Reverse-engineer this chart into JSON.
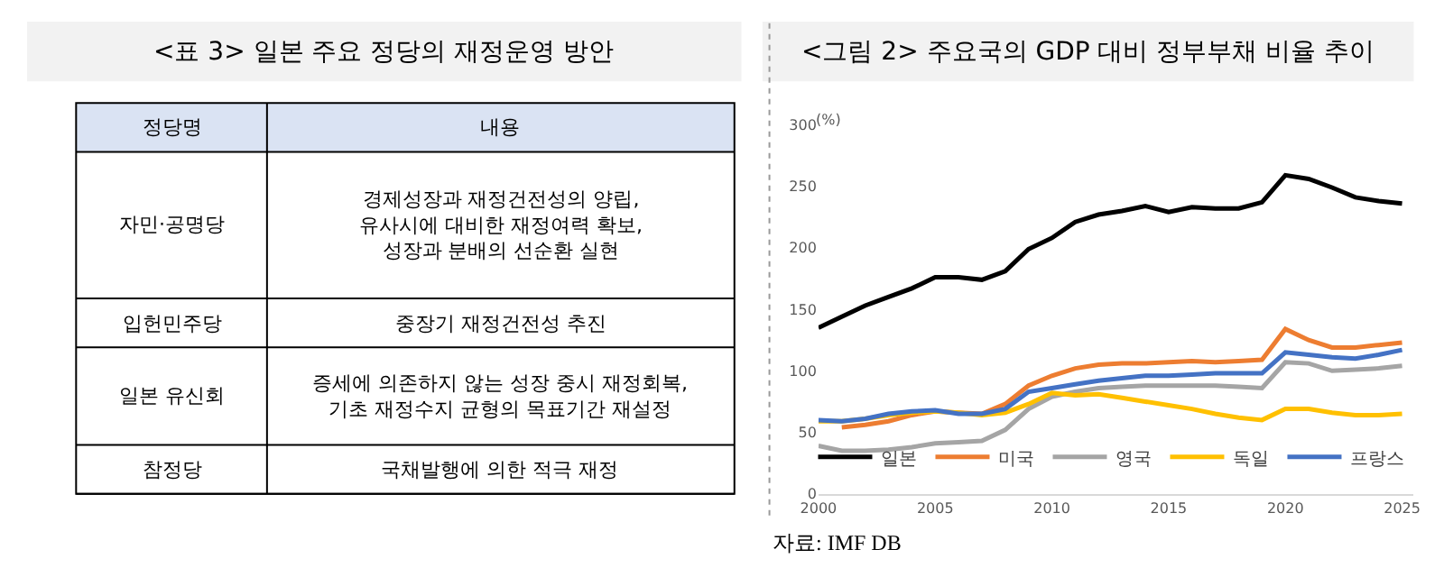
{
  "chart_data": [
    {
      "type": "other",
      "title": "<표 3> 일본 주요 정당의 재정운영 방안",
      "annotations": [
        "정당명",
        "내용",
        "자민·공명당",
        "경제성장과 재정건전성의 양립,\n유사시에 대비한 재정여력 확보,\n성장과 분배의 선순환 실현",
        "입헌민주당",
        "중장기 재정건전성 추진",
        "일본 유신회",
        "증세에 의존하지 않는 성장 중시 재정회복,\n기초 재정수지 균형의 목표기간 재설정",
        "참정당",
        "국채발행에 의한 적극 재정"
      ]
    },
    {
      "type": "line",
      "title": "<그림 2> 주요국의 GDP 대비 정부부채 비율 추이",
      "ylabel": "(%)",
      "annotations": [
        "자료: IMF DB"
      ],
      "x": [
        2000,
        2001,
        2002,
        2003,
        2004,
        2005,
        2006,
        2007,
        2008,
        2009,
        2010,
        2011,
        2012,
        2013,
        2014,
        2015,
        2016,
        2017,
        2018,
        2019,
        2020,
        2021,
        2022,
        2023,
        2024,
        2025
      ],
      "xlim": [
        2000,
        2025.5
      ],
      "xticks": [
        2000,
        2005,
        2010,
        2015,
        2020,
        2025
      ],
      "ylim": [
        0,
        300
      ],
      "yticks": [
        0,
        50,
        100,
        150,
        200,
        250,
        300
      ],
      "grid": false,
      "legend": "bottom",
      "line_style": "solid",
      "marker": "none",
      "series": [
        {
          "name": "일본",
          "color": "#000000",
          "values": [
            135,
            144,
            153,
            160,
            167,
            176,
            176,
            174,
            181,
            199,
            208,
            221,
            227,
            230,
            234,
            229,
            233,
            232,
            232,
            237,
            259,
            256,
            249,
            241,
            238,
            236
          ]
        },
        {
          "name": "미국",
          "color": "#ed7d31",
          "values": [
            null,
            54,
            56,
            59,
            64,
            67,
            66,
            65,
            73,
            88,
            96,
            102,
            105,
            106,
            106,
            107,
            108,
            107,
            108,
            109,
            134,
            125,
            119,
            119,
            121,
            123
          ]
        },
        {
          "name": "영국",
          "color": "#a5a5a5",
          "values": [
            39,
            35,
            35,
            36,
            38,
            41,
            42,
            43,
            52,
            69,
            79,
            83,
            86,
            87,
            88,
            88,
            88,
            88,
            87,
            86,
            107,
            106,
            100,
            101,
            102,
            104
          ]
        },
        {
          "name": "독일",
          "color": "#ffc000",
          "values": [
            59,
            59,
            61,
            64,
            66,
            67,
            66,
            64,
            66,
            73,
            82,
            80,
            81,
            78,
            75,
            72,
            69,
            65,
            62,
            60,
            69,
            69,
            66,
            64,
            64,
            65
          ]
        },
        {
          "name": "프랑스",
          "color": "#4472c4",
          "values": [
            60,
            59,
            61,
            65,
            67,
            68,
            65,
            65,
            69,
            83,
            86,
            89,
            92,
            94,
            96,
            96,
            97,
            98,
            98,
            98,
            115,
            113,
            111,
            110,
            113,
            117
          ]
        }
      ]
    }
  ]
}
